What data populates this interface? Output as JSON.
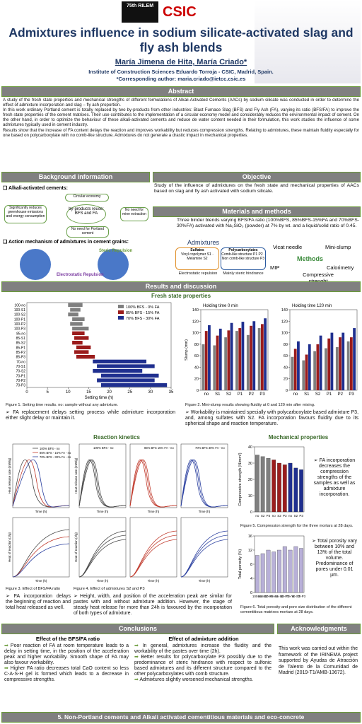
{
  "header": {
    "logos": [
      "75th RILEM",
      "CSIC"
    ],
    "title": "Admixtures influence in sodium silicate-activated slag and fly ash blends",
    "authors": "María Jimena de Hita, María Criado*",
    "institute": "Institute of Construction Sciences Eduardo Torroja - CSIC, Madrid, Spain.",
    "contact": "*Corresponding author: maria.criado@ietcc.csic.es"
  },
  "abstract": {
    "heading": "Abstract",
    "paragraphs": [
      "A study of the fresh state properties and mechanical strengths of different formulations of Alkali-Activated Cements (AACs) by sodium silicate was conducted in order to determine the effect of admixture incorporation and slag – fly ash proportion.",
      "In this work ordinary Portland cement is totally replaced by two by-products from other industries: Blast Furnace Slag (BFS) and Fly Ash (FA), varying its ratio (BFS/FA) to improve the fresh state properties of the cement matrixes. Their use contributes to the implementation of a circular economy model and considerably reduces the environmental impact of cement. On the other hand, in order to optimize the behaviour of these alkali-activated cements and reduce de water content needed in their formulation, this work studies the influence of some admixtures typically used in cement industry.",
      "Results show that the increase of FA content delays the reaction and improves workability but reduces compression strengths. Relating to admixtures, these maintain fluidity especially for one based on polycarboxylate with no comb-like structure. Admixtures do not generate a drastic impact in mechanical properties."
    ]
  },
  "background": {
    "heading": "Background information",
    "item1": "Alkali-activated cements:",
    "diagram": [
      "Circular economy",
      "Significantly reduces greenhouse emissions and energy consumption",
      "by-products reuse: BFS and FA",
      "No need for mine extraction",
      "No need for Portland cement"
    ],
    "item2": "Action mechanism of admixtures in cement grains:",
    "steric": "Steric Repulsion",
    "electrostatic": "Electrostatic Repulsion"
  },
  "objective": {
    "heading": "Objective",
    "text": "Study of the influence of admixtures on the fresh state and mechanical properties of AACs based on slag and fly ash activated with sodium silicate."
  },
  "materials": {
    "heading": "Materials and methods",
    "text": "Three binder blends varying BFS/FA ratio (100%BFS, 85%BFS-15%FA and 70%BFS-30%FA) activated with Na₂SiO₃ (powder) at 7% by wt. and a liquid/solid ratio of 0.45.",
    "admixtures": {
      "title": "Admixtures",
      "sulfates": "Sulfates",
      "s1": "Vinyl copolymer S1",
      "s2": "Melamine S2",
      "polycarboxylates": "Polycarboxylates",
      "comb": "Comb-like structure P1 P2",
      "noncomb": "Non comb-like structure P3",
      "electro": "Electrostatic repulsion",
      "steric": "Mainly steric hindrance"
    },
    "methods": {
      "title": "Methods",
      "items": [
        "Vicat needle",
        "Mini-slump",
        "MIP",
        "Calorimetry",
        "Compressive strenght"
      ]
    }
  },
  "results": {
    "heading": "Results and discussion",
    "fresh": "Fresh state properties",
    "fig1": "Figure 1. Setting time results. no: sample without any admixture.",
    "note1": "➢ FA replacement delays setting process while admixture incorporation either slight delay or maintain it.",
    "fig2": "Figure 2. Mini-slump results showing fluidity at 0 and 120 min after mixing.",
    "note2": "➢ Workability is maintained specially with polycarboxylate based admixture P3, and, among sulfates with S2. FA incorporation favours fluidity due to its spherical shape and reaction temperature.",
    "kinetics": "Reaction kinetics",
    "legend3": [
      "100% BFS - no",
      "85% BFS - 15% FA - no",
      "70% BFS - 30% FA - no"
    ],
    "legend4": [
      "100% BFS - no",
      "85% BFS 15% FA - no",
      "70% BFS 30% FA - no"
    ],
    "rate_label": "Heat release rate (mW/g)",
    "heat_label": "Heat of reaction (J/g)",
    "time_label": "Time (h)",
    "fig3": "Figure 3. Effect of BFS/FA ratio",
    "fig4": "Figure 4. Effect of admixtures S2 and P3",
    "note3": "➢ FA incorporation delays the beginning of reaction and total heat released as well.",
    "note4": "➢ Height, width, and position of the acceleration peak are similar for pastes with and without admixture addition. However, the stage of steady heat release for more than 24h is favoured by the incorporation of both types of admixture.",
    "mechanical": "Mechanical properties",
    "note5": "➢ FA incorporation decreases the compression strengths of the samples as well as admixture incorporation.",
    "fig5": "Figure 5. Compression strength for the three mortars at 28 days.",
    "note6": "➢ Total porosity vary between 10% and 13% of the total volume. Predominance of pores under 0.01 µm.",
    "fig6": "Figure 6. Total porosity and pore size distribution of the different cementitious matrixes mortars at 28 days."
  },
  "chart_data": [
    {
      "type": "range",
      "xlabel": "Setting time (h)",
      "xlim": [
        0,
        35
      ],
      "xticks": [
        0,
        5,
        10,
        15,
        20,
        25,
        30,
        35
      ],
      "series": [
        {
          "name": "100% BFS - 0% FA",
          "color": "#7f7f7f",
          "categories": [
            "100-no",
            "100-S1",
            "100-S2",
            "100-P1",
            "100-P2",
            "100-P3"
          ],
          "start": [
            10,
            10.5,
            10,
            11,
            10.5,
            11
          ],
          "end": [
            13.5,
            13,
            12.5,
            14,
            13.5,
            15
          ]
        },
        {
          "name": "85% BFS - 15% FA",
          "color": "#9b1c1c",
          "categories": [
            "85-no",
            "85-S1",
            "85-S2",
            "85-P1",
            "85-P2",
            "85-P3"
          ],
          "start": [
            11,
            11.5,
            11,
            12,
            11.5,
            12
          ],
          "end": [
            14,
            15,
            13.5,
            15.5,
            15,
            16.5
          ]
        },
        {
          "name": "70% BFS - 30% FA",
          "color": "#1f2f8f",
          "categories": [
            "70-no",
            "70-S1",
            "70-S2",
            "70-P1",
            "70-P2",
            "70-P3"
          ],
          "start": [
            16,
            17,
            16,
            18,
            17,
            18
          ],
          "end": [
            29,
            31,
            28,
            32,
            31,
            34
          ]
        }
      ]
    },
    {
      "type": "bar",
      "title": "Holding time 0 min",
      "ylabel": "Slump (mm)",
      "categories": [
        "no",
        "S1",
        "S2",
        "P1",
        "P2",
        "P3"
      ],
      "ylim": [
        0,
        140
      ],
      "yticks": [
        0,
        20,
        40,
        60,
        80,
        100,
        120,
        140
      ],
      "series": [
        {
          "color": "#7f7f7f",
          "values": [
            80,
            78,
            92,
            103,
            96,
            108
          ]
        },
        {
          "color": "#9b1c1c",
          "values": [
            103,
            95,
            104,
            108,
            112,
            115
          ]
        },
        {
          "color": "#1f2f8f",
          "values": [
            113,
            107,
            117,
            119,
            120,
            125
          ]
        }
      ]
    },
    {
      "type": "bar",
      "title": "Holding time 120 min",
      "categories": [
        "no",
        "S1",
        "S2",
        "P1",
        "P2",
        "P3"
      ],
      "ylim": [
        0,
        140
      ],
      "yticks": [
        0,
        20,
        40,
        60,
        80,
        100,
        120,
        140
      ],
      "series": [
        {
          "color": "#7f7f7f",
          "values": [
            58,
            52,
            68,
            73,
            75,
            85
          ]
        },
        {
          "color": "#9b1c1c",
          "values": [
            72,
            62,
            80,
            90,
            92,
            92
          ]
        },
        {
          "color": "#1f2f8f",
          "values": [
            85,
            80,
            95,
            100,
            100,
            108
          ]
        }
      ]
    },
    {
      "type": "bar",
      "ylabel": "Compressive strength (N/mm²)",
      "categories": [
        "no",
        "S2",
        "P3",
        "no",
        "S2",
        "P3",
        "no",
        "S2",
        "P3"
      ],
      "values": [
        35,
        34,
        33,
        32,
        30,
        29,
        30,
        27,
        26
      ],
      "colors": [
        "#7f7f7f",
        "#7f7f7f",
        "#7f7f7f",
        "#9b1c1c",
        "#9b1c1c",
        "#9b1c1c",
        "#1f2f8f",
        "#1f2f8f",
        "#1f2f8f"
      ],
      "ylim": [
        0,
        40
      ],
      "yticks": [
        0,
        10,
        20,
        30,
        40
      ]
    },
    {
      "type": "bar",
      "ylabel": "Total porosity (%)",
      "categories": [
        "100-no",
        "100-S2",
        "100-P3",
        "85-no",
        "85-S2",
        "85-P3",
        "70-no",
        "70-S2",
        "70-P3"
      ],
      "values": [
        10.5,
        11,
        12,
        11.5,
        12,
        13,
        12,
        13,
        12.5
      ],
      "color": "#b8b0d8",
      "ylim": [
        0,
        16
      ],
      "yticks": [
        0,
        4,
        8,
        12,
        16
      ]
    }
  ],
  "conclusions": {
    "heading": "Conclusions",
    "left_title": "Effect of the BFS/FA ratio",
    "left": [
      "Poor reaction of FA at room temperature leads to a delay in setting time, in the position of the acceleration peak and higher workability. Smooth shape of FA may also favour workability.",
      "Higher FA ratio decreases total CaO content so less C-A-S-H gel is formed which leads to a decrease in compressive strengths."
    ],
    "right_title": "Effect of admixture addition",
    "right": [
      "In general, admixtures increase the fluidity and the workability of the pastes over time (2h).",
      "Better results for polycarboxylate P3 possibly due to the predominance of steric hindrance with respect to sulfonic based admixtures and its different structure compared to the other polycarboxylates with comb structure.",
      "Admixtures slightly worsened mechanical strengths."
    ]
  },
  "acknowledgments": {
    "heading": "Acknowledgments",
    "text": "This work was carried out within the framework of the IRINEMA project supported by Ayudas de Atracción de Talento de la Comunidad de Madrid (2019-T1/AMB-13672)."
  },
  "footer": "5. Non-Portland cements and Alkali activated cementitious materials and eco-concrete"
}
